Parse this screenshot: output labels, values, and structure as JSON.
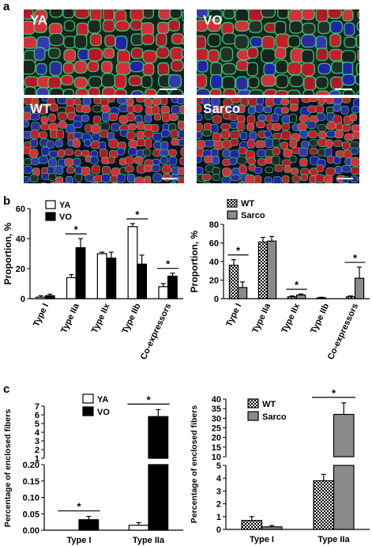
{
  "panel_labels": {
    "a": "a",
    "b": "b",
    "c": "c"
  },
  "micrographs": [
    {
      "label": "YA",
      "palette": "young"
    },
    {
      "label": "VO",
      "palette": "old"
    },
    {
      "label": "WT",
      "palette": "wt"
    },
    {
      "label": "Sarco",
      "palette": "sarco"
    }
  ],
  "colors": {
    "red": "#c8202c",
    "blue": "#2a2c9a",
    "membrane": "#3fd07a",
    "background": "#0b1a14"
  },
  "chart_data": [
    {
      "id": "b-left",
      "type": "bar",
      "ylabel": "Proportion, %",
      "ylim": [
        0,
        60
      ],
      "yticks": [
        0,
        20,
        40,
        60
      ],
      "categories": [
        "Type I",
        "Type IIa",
        "Type IIx",
        "Type IIb",
        "Co-expressors"
      ],
      "series": [
        {
          "name": "YA",
          "fill": "white",
          "values": [
            1,
            14,
            30,
            48,
            8
          ],
          "errors": [
            1,
            2,
            1,
            2,
            2
          ]
        },
        {
          "name": "VO",
          "fill": "black",
          "values": [
            2,
            34,
            27,
            23,
            15
          ],
          "errors": [
            1,
            6,
            4,
            6,
            2
          ]
        }
      ],
      "significance": [
        {
          "category": "Type IIa",
          "label": "*"
        },
        {
          "category": "Type IIb",
          "label": "*"
        },
        {
          "category": "Co-expressors",
          "label": "*"
        }
      ],
      "legend": "top-left"
    },
    {
      "id": "b-right",
      "type": "bar",
      "ylabel": "Proportion, %",
      "ylim": [
        0,
        80
      ],
      "yticks": [
        0,
        20,
        40,
        60,
        80
      ],
      "categories": [
        "Type I",
        "Type IIa",
        "Type IIx",
        "Type IIb",
        "Co-expressors"
      ],
      "series": [
        {
          "name": "WT",
          "fill": "checker",
          "values": [
            36,
            61,
            2,
            1,
            2
          ],
          "errors": [
            6,
            5,
            1,
            0.5,
            1
          ]
        },
        {
          "name": "Sarco",
          "fill": "gray",
          "values": [
            12,
            62,
            4,
            0,
            22
          ],
          "errors": [
            6,
            5,
            1,
            0,
            12
          ]
        }
      ],
      "significance": [
        {
          "category": "Type I",
          "label": "*"
        },
        {
          "category": "Type IIx",
          "label": "*"
        },
        {
          "category": "Co-expressors",
          "label": "*"
        }
      ],
      "legend": "top-left"
    },
    {
      "id": "c-left",
      "type": "bar",
      "ylabel": "Percentage of enclosed fibers",
      "broken_axis": {
        "lower": {
          "range": [
            0,
            0.2
          ],
          "ticks": [
            "0.00",
            "0.05",
            "0.10",
            "0.15",
            "0.20"
          ]
        },
        "upper": {
          "range": [
            1,
            7
          ],
          "ticks": [
            "1",
            "2",
            "3",
            "4",
            "5",
            "6",
            "7"
          ]
        }
      },
      "categories": [
        "Type I",
        "Type IIa"
      ],
      "series": [
        {
          "name": "YA",
          "fill": "white",
          "values": [
            0,
            0.015
          ],
          "errors": [
            0,
            0.008
          ]
        },
        {
          "name": "VO",
          "fill": "black",
          "values": [
            0.032,
            5.8
          ],
          "errors": [
            0.01,
            0.8
          ]
        }
      ],
      "significance": [
        {
          "category": "Type I",
          "label": "*"
        },
        {
          "category": "Type IIa",
          "label": "*"
        }
      ],
      "legend": "top-left"
    },
    {
      "id": "c-right",
      "type": "bar",
      "ylabel": "Percentage of enclosed fibers",
      "broken_axis": {
        "lower": {
          "range": [
            0,
            5
          ],
          "ticks": [
            "0",
            "1",
            "2",
            "3",
            "4",
            "5"
          ]
        },
        "upper": {
          "range": [
            10,
            40
          ],
          "ticks": [
            "10",
            "15",
            "20",
            "25",
            "30",
            "35",
            "40"
          ]
        }
      },
      "categories": [
        "Type I",
        "Type IIa"
      ],
      "series": [
        {
          "name": "WT",
          "fill": "checker",
          "values": [
            0.7,
            3.8
          ],
          "errors": [
            0.3,
            0.5
          ]
        },
        {
          "name": "Sarco",
          "fill": "gray",
          "values": [
            0.2,
            32
          ],
          "errors": [
            0.1,
            6
          ]
        }
      ],
      "significance": [
        {
          "category": "Type IIa",
          "label": "*"
        }
      ],
      "legend": "top-right"
    }
  ]
}
